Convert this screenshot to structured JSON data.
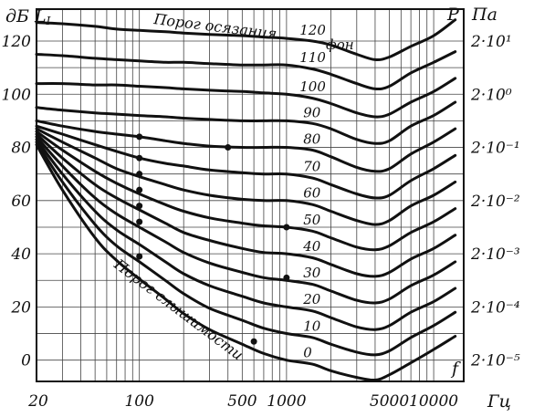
{
  "chart_data": {
    "type": "line",
    "title": "",
    "xlabel": "f",
    "x_unit": "Гц",
    "ylabel_left": "дБ L",
    "ylabel_left_subscript": "I",
    "ylabel_right": "P",
    "ylabel_right_unit": "Па",
    "xscale": "log",
    "xlim": [
      20,
      16000
    ],
    "ylim": [
      -8,
      132
    ],
    "grid": true,
    "x_ticks": [
      {
        "value": 20,
        "label": "20"
      },
      {
        "value": 100,
        "label": "100"
      },
      {
        "value": 500,
        "label": "500"
      },
      {
        "value": 1000,
        "label": "1000"
      },
      {
        "value": 5000,
        "label": "5000"
      },
      {
        "value": 10000,
        "label": "10000"
      }
    ],
    "y_ticks_left": [
      {
        "value": 0,
        "label": "0"
      },
      {
        "value": 20,
        "label": "20"
      },
      {
        "value": 40,
        "label": "40"
      },
      {
        "value": 60,
        "label": "60"
      },
      {
        "value": 80,
        "label": "80"
      },
      {
        "value": 100,
        "label": "100"
      },
      {
        "value": 120,
        "label": "120"
      }
    ],
    "y_ticks_right": [
      {
        "value": 120,
        "label": "2·10¹"
      },
      {
        "value": 100,
        "label": "2·10⁰"
      },
      {
        "value": 80,
        "label": "2·10⁻¹"
      },
      {
        "value": 60,
        "label": "2·10⁻²"
      },
      {
        "value": 40,
        "label": "2·10⁻³"
      },
      {
        "value": 20,
        "label": "2·10⁻⁴"
      },
      {
        "value": 0,
        "label": "2·10⁻⁵"
      }
    ],
    "annotations": {
      "pain_threshold": "Порог осязания",
      "phon_unit": "фон",
      "hearing_threshold": "Порог слышимости"
    },
    "x": [
      20,
      30,
      50,
      70,
      100,
      150,
      200,
      300,
      500,
      700,
      1000,
      1500,
      2000,
      3000,
      4000,
      5000,
      7000,
      10000,
      14000
    ],
    "series": [
      {
        "name": "120",
        "values": [
          127,
          126.5,
          125.5,
          124.5,
          124,
          123.5,
          123,
          122.5,
          122,
          121.5,
          121,
          120,
          118.5,
          115,
          113,
          114,
          118,
          122,
          128
        ]
      },
      {
        "name": "110",
        "values": [
          115,
          114.5,
          113.5,
          113,
          112.5,
          112,
          112,
          111.5,
          111,
          111,
          111,
          109.5,
          107.5,
          104,
          102,
          103,
          108,
          112,
          116
        ]
      },
      {
        "name": "100",
        "values": [
          104,
          104,
          103.5,
          103.5,
          103,
          102.5,
          102,
          101.5,
          101,
          100.5,
          100,
          98.5,
          96.5,
          93,
          91.5,
          92.5,
          97,
          101,
          106
        ]
      },
      {
        "name": "90",
        "values": [
          95,
          94,
          93,
          92.5,
          92,
          91.5,
          91,
          90.5,
          90,
          90,
          90,
          89,
          87,
          83,
          81.5,
          82.5,
          88,
          92,
          97
        ]
      },
      {
        "name": "80",
        "values": [
          90,
          88,
          86,
          85,
          84,
          82.5,
          81.5,
          80.5,
          80,
          80,
          80,
          79,
          76.5,
          72.5,
          71,
          72,
          77.5,
          82,
          87
        ]
      },
      {
        "name": "70",
        "values": [
          88,
          85,
          81,
          78.5,
          76,
          74,
          73,
          71.5,
          70.5,
          70,
          70,
          68.5,
          66,
          62.5,
          61,
          62,
          67.5,
          72,
          77
        ]
      },
      {
        "name": "60",
        "values": [
          87,
          82,
          76,
          72,
          69,
          66,
          64,
          62,
          60.5,
          60,
          60,
          58.5,
          56,
          52.5,
          51,
          52.5,
          58,
          62,
          67
        ]
      },
      {
        "name": "50",
        "values": [
          86,
          79,
          71,
          66.5,
          62.5,
          58.5,
          56,
          53.5,
          51.5,
          50.5,
          50,
          48.5,
          46,
          42.5,
          41.5,
          43,
          48,
          52,
          57
        ]
      },
      {
        "name": "40",
        "values": [
          85,
          76,
          66,
          61,
          56.5,
          51.5,
          48,
          45,
          42,
          40.5,
          40,
          38.5,
          36,
          32.5,
          31.5,
          33,
          38,
          42,
          47
        ]
      },
      {
        "name": "30",
        "values": [
          84,
          73,
          61,
          55,
          50,
          44.5,
          40.5,
          36.5,
          33,
          31,
          30,
          28.5,
          26,
          22.5,
          21.5,
          23,
          28,
          32,
          37
        ]
      },
      {
        "name": "20",
        "values": [
          83,
          70,
          56,
          49,
          43.5,
          37,
          32.5,
          28,
          24,
          21.5,
          20,
          18.5,
          16,
          12.5,
          11.5,
          13,
          18,
          22,
          27
        ]
      },
      {
        "name": "10",
        "values": [
          82,
          67,
          51,
          43,
          37,
          30,
          25,
          19.5,
          15,
          12,
          10,
          8.5,
          6,
          3,
          2,
          3.5,
          8.5,
          13,
          18
        ]
      },
      {
        "name": "0",
        "values": [
          81,
          64,
          46,
          37.5,
          30.5,
          23,
          17.5,
          11.5,
          6,
          2.5,
          0,
          -1.5,
          -4,
          -6.5,
          -7.5,
          -5.5,
          -1,
          4,
          9
        ]
      }
    ],
    "markers": [
      {
        "x": 100,
        "y": 84
      },
      {
        "x": 100,
        "y": 76
      },
      {
        "x": 100,
        "y": 70
      },
      {
        "x": 100,
        "y": 64
      },
      {
        "x": 100,
        "y": 58
      },
      {
        "x": 100,
        "y": 52
      },
      {
        "x": 100,
        "y": 39
      },
      {
        "x": 400,
        "y": 80
      },
      {
        "x": 1000,
        "y": 50
      },
      {
        "x": 1000,
        "y": 31
      },
      {
        "x": 600,
        "y": 7
      }
    ]
  }
}
